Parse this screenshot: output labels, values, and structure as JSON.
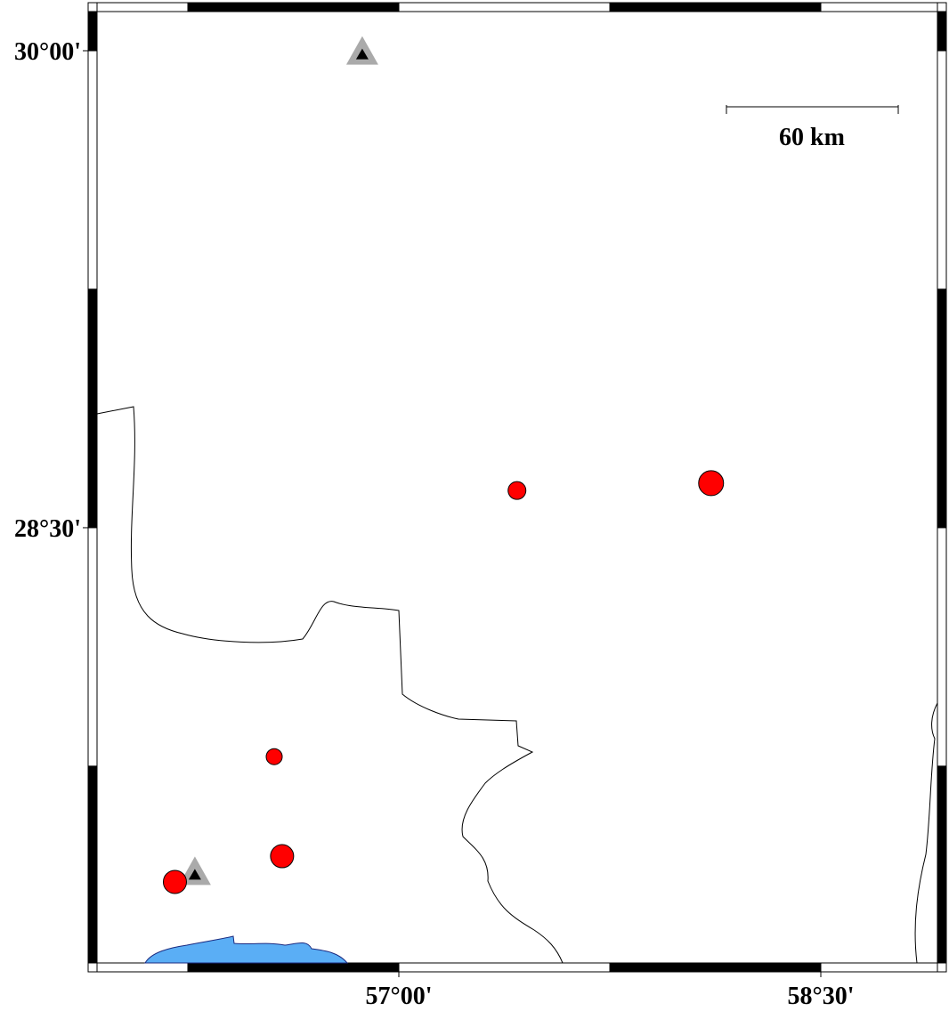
{
  "map": {
    "lon_ticks": [
      {
        "value": 57,
        "label": "57°00'"
      },
      {
        "value": 58.5,
        "label": "58°30'"
      }
    ],
    "lat_ticks": [
      {
        "value": 30,
        "label": "30°00'"
      },
      {
        "value": 28.5,
        "label": "28°30'"
      }
    ],
    "scale_bar": "60 km",
    "events": [
      {
        "lon": 57.42,
        "lat": 28.617,
        "size": 10
      },
      {
        "lon": 58.11,
        "lat": 28.64,
        "size": 14
      },
      {
        "lon": 56.557,
        "lat": 27.78,
        "size": 9
      },
      {
        "lon": 56.585,
        "lat": 27.467,
        "size": 13
      },
      {
        "lon": 56.204,
        "lat": 27.386,
        "size": 13
      }
    ],
    "stations": [
      {
        "lon": 56.87,
        "lat": 29.99
      },
      {
        "lon": 56.275,
        "lat": 27.41
      }
    ]
  }
}
